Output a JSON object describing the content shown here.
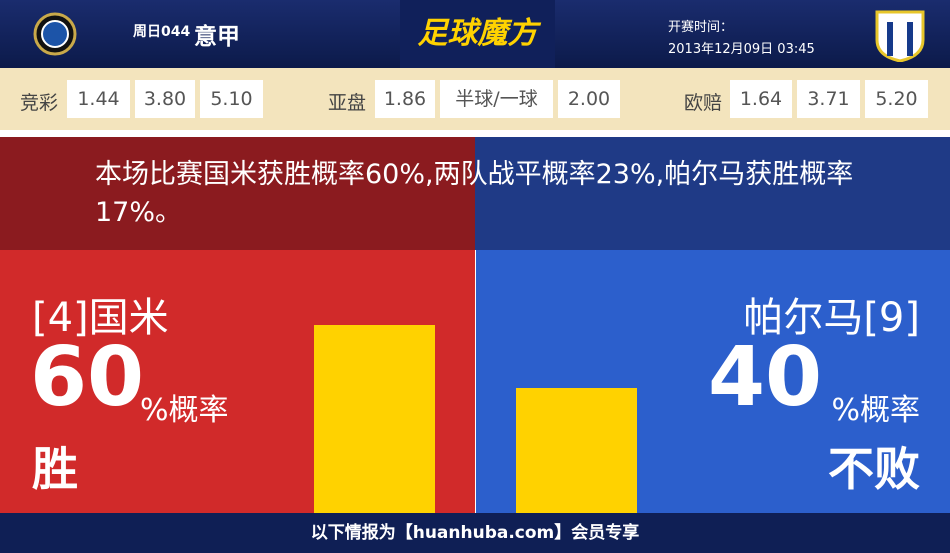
{
  "header": {
    "match": "周日044",
    "league": "意甲",
    "brand": "足球魔方",
    "kickoff_label": "开赛时间：",
    "kickoff_time": "2013年12月09日 03:45"
  },
  "odds": [
    {
      "label": "竞彩",
      "values": [
        "1.44",
        "3.80",
        "5.10"
      ]
    },
    {
      "label": "亚盘",
      "values": [
        "1.86",
        "半球/一球",
        "2.00"
      ]
    },
    {
      "label": "欧赔",
      "values": [
        "1.64",
        "3.71",
        "5.20"
      ]
    }
  ],
  "summary": "本场比赛国米获胜概率60%,两队战平概率23%,帕尔马获胜概率17%。",
  "panels": [
    {
      "team": "[4]国米",
      "percent": 60,
      "suffix": "%概率",
      "outcome": "胜"
    },
    {
      "team": "帕尔马[9]",
      "percent": 40,
      "suffix": "%概率",
      "outcome": "不败"
    }
  ],
  "footer": "以下情报为【huanhuba.com】会员专享"
}
